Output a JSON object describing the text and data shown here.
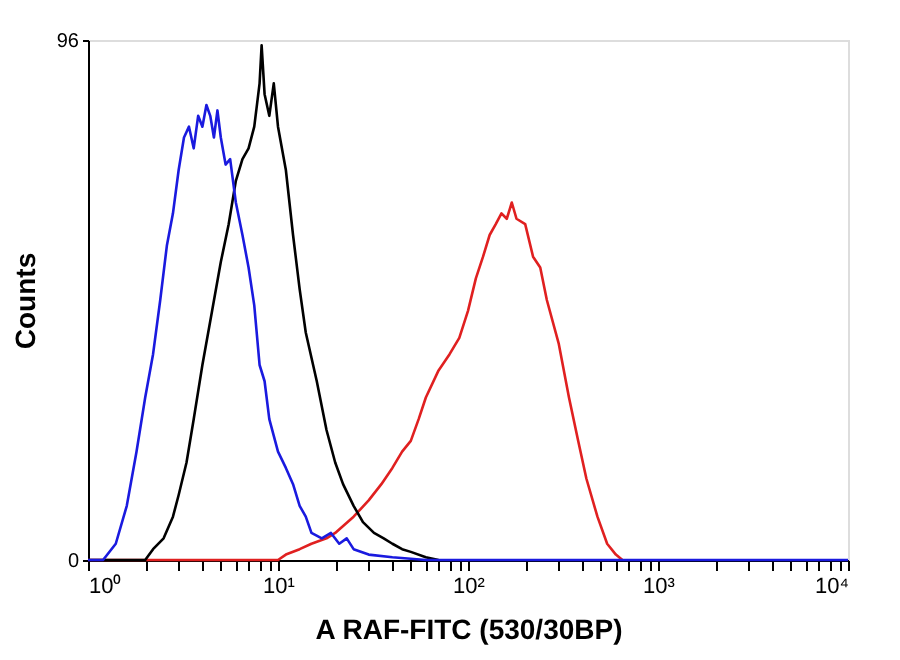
{
  "chart_data": {
    "type": "line",
    "xlabel": "A RAF-FITC (530/30BP)",
    "ylabel": "Counts",
    "log": "x",
    "xlim": [
      1,
      10000
    ],
    "ylim": [
      0,
      96
    ],
    "yticks": [
      0,
      96
    ],
    "grid": false,
    "legend": false,
    "marker": "none",
    "line_style": "solid",
    "xticks": [
      {
        "value": 1,
        "label": "10⁰"
      },
      {
        "value": 2,
        "label": null
      },
      {
        "value": 3,
        "label": null
      },
      {
        "value": 4,
        "label": null
      },
      {
        "value": 5,
        "label": null
      },
      {
        "value": 6,
        "label": null
      },
      {
        "value": 7,
        "label": null
      },
      {
        "value": 8,
        "label": null
      },
      {
        "value": 9,
        "label": null
      },
      {
        "value": 10,
        "label": "10¹"
      },
      {
        "value": 20,
        "label": null
      },
      {
        "value": 30,
        "label": null
      },
      {
        "value": 40,
        "label": null
      },
      {
        "value": 50,
        "label": null
      },
      {
        "value": 60,
        "label": null
      },
      {
        "value": 70,
        "label": null
      },
      {
        "value": 80,
        "label": null
      },
      {
        "value": 90,
        "label": null
      },
      {
        "value": 100,
        "label": "10²"
      },
      {
        "value": 200,
        "label": null
      },
      {
        "value": 300,
        "label": null
      },
      {
        "value": 400,
        "label": null
      },
      {
        "value": 500,
        "label": null
      },
      {
        "value": 600,
        "label": null
      },
      {
        "value": 700,
        "label": null
      },
      {
        "value": 800,
        "label": null
      },
      {
        "value": 900,
        "label": null
      },
      {
        "value": 1000,
        "label": "10³"
      },
      {
        "value": 2000,
        "label": null
      },
      {
        "value": 3000,
        "label": null
      },
      {
        "value": 4000,
        "label": null
      },
      {
        "value": 5000,
        "label": null
      },
      {
        "value": 6000,
        "label": null
      },
      {
        "value": 7000,
        "label": null
      },
      {
        "value": 8000,
        "label": null
      },
      {
        "value": 9000,
        "label": null
      },
      {
        "value": 10000,
        "label": "10⁴"
      }
    ],
    "series": [
      {
        "color": "#e02020",
        "x": [
          1,
          10,
          11,
          13,
          15,
          18,
          20,
          25,
          30,
          35,
          40,
          45,
          50,
          55,
          60,
          70,
          80,
          90,
          100,
          110,
          120,
          130,
          140,
          150,
          160,
          170,
          180,
          200,
          220,
          240,
          260,
          300,
          340,
          380,
          420,
          480,
          540,
          600,
          650
        ],
        "values": [
          0,
          0,
          1,
          2,
          3,
          4,
          5,
          8,
          11,
          14,
          17,
          20,
          22,
          26,
          30,
          35,
          38,
          41,
          46,
          52,
          56,
          60,
          62,
          64,
          63,
          66,
          63,
          62,
          56,
          54,
          48,
          40,
          30,
          22,
          15,
          8,
          3,
          1,
          0
        ]
      },
      {
        "color": "#000000",
        "x": [
          1,
          2.0,
          2.2,
          2.5,
          2.8,
          3.0,
          3.3,
          3.6,
          4.0,
          4.5,
          5.0,
          5.5,
          6.0,
          6.5,
          7.0,
          7.5,
          8.0,
          8.2,
          8.5,
          9.0,
          9.5,
          10,
          11,
          12,
          13,
          14,
          16,
          18,
          20,
          22,
          25,
          28,
          32,
          36,
          40,
          45,
          50,
          60,
          70
        ],
        "values": [
          0,
          0,
          2,
          4,
          8,
          12,
          18,
          26,
          36,
          46,
          55,
          62,
          70,
          74,
          76,
          80,
          88,
          95,
          86,
          82,
          88,
          80,
          72,
          60,
          50,
          42,
          33,
          24,
          18,
          14,
          10,
          7,
          5,
          4,
          3,
          2,
          1.5,
          0.5,
          0
        ]
      },
      {
        "color": "#1a1adf",
        "x": [
          1,
          1.2,
          1.4,
          1.6,
          1.8,
          2.0,
          2.2,
          2.4,
          2.6,
          2.8,
          3.0,
          3.2,
          3.4,
          3.6,
          3.8,
          4.0,
          4.2,
          4.4,
          4.6,
          4.8,
          5.0,
          5.3,
          5.6,
          6.0,
          6.5,
          7.0,
          7.5,
          8.0,
          8.5,
          9.0,
          10,
          11,
          12,
          13,
          14,
          15,
          17,
          19,
          21,
          23,
          25,
          30,
          40,
          60,
          10000
        ],
        "values": [
          0,
          0,
          3,
          10,
          20,
          30,
          38,
          48,
          58,
          64,
          72,
          78,
          80,
          76,
          82,
          80,
          84,
          82,
          78,
          83,
          78,
          73,
          74,
          66,
          60,
          54,
          47,
          36,
          33,
          26,
          20,
          17,
          14,
          10,
          8,
          5,
          4,
          5,
          3,
          4,
          2,
          1,
          0.5,
          0,
          0
        ]
      }
    ]
  }
}
